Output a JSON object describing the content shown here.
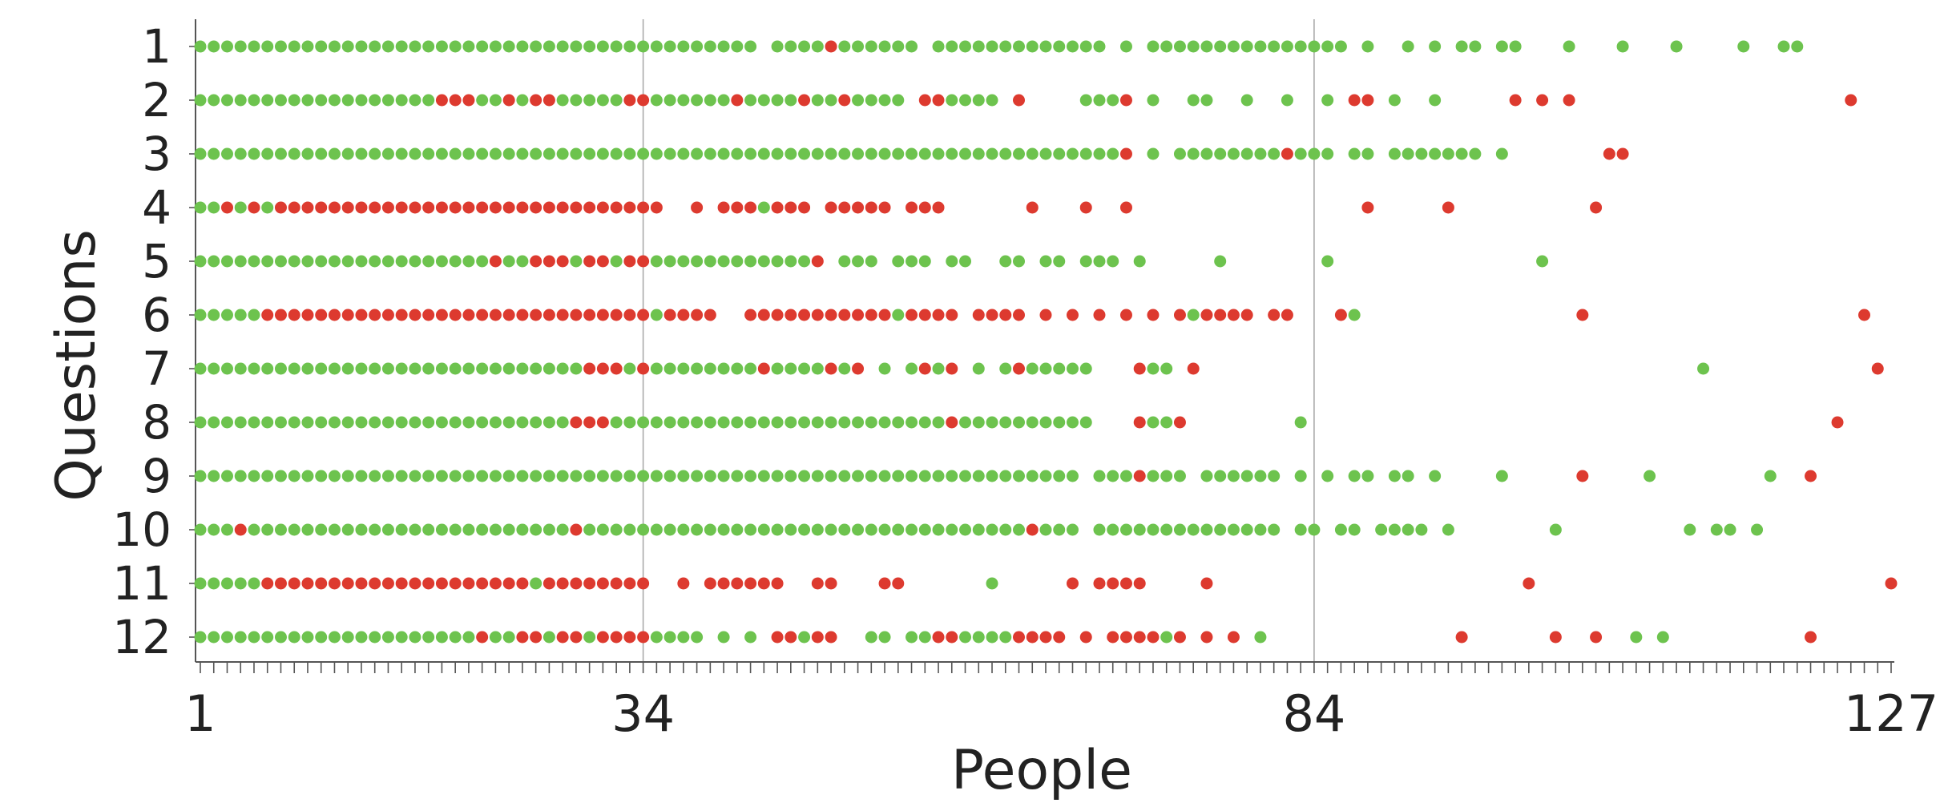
{
  "chart_data": {
    "type": "scatter",
    "title": "",
    "xlabel": "People",
    "ylabel": "Questions",
    "x_ticks": [
      1,
      34,
      84,
      127
    ],
    "x_tick_labels": [
      "1",
      "34",
      "84",
      "127"
    ],
    "y_categories": [
      "1",
      "2",
      "3",
      "4",
      "5",
      "6",
      "7",
      "8",
      "9",
      "10",
      "11",
      "12"
    ],
    "xlim": [
      1,
      127
    ],
    "vertical_gridlines_at": [
      34,
      84
    ],
    "grid": false,
    "legend": "none",
    "colors": {
      "green": "#6dc34e",
      "red": "#dd3a2f",
      "gridline": "#aaaaaa",
      "axis": "#555555"
    },
    "rows": [
      {
        "question": "1",
        "segments": [
          [
            1,
            42,
            "g"
          ],
          [
            44,
            47,
            "g"
          ],
          [
            48,
            48,
            "r"
          ],
          [
            49,
            54,
            "g"
          ],
          [
            56,
            68,
            "g"
          ],
          [
            70,
            70,
            "g"
          ],
          [
            72,
            86,
            "g"
          ],
          [
            88,
            88,
            "g"
          ],
          [
            91,
            91,
            "g"
          ],
          [
            93,
            93,
            "g"
          ],
          [
            95,
            96,
            "g"
          ],
          [
            98,
            99,
            "g"
          ],
          [
            103,
            103,
            "g"
          ],
          [
            107,
            107,
            "g"
          ],
          [
            111,
            111,
            "g"
          ],
          [
            116,
            116,
            "g"
          ],
          [
            119,
            120,
            "g"
          ]
        ]
      },
      {
        "question": "2",
        "segments": [
          [
            1,
            18,
            "g"
          ],
          [
            19,
            21,
            "r"
          ],
          [
            22,
            23,
            "g"
          ],
          [
            24,
            24,
            "r"
          ],
          [
            25,
            25,
            "g"
          ],
          [
            26,
            27,
            "r"
          ],
          [
            28,
            32,
            "g"
          ],
          [
            33,
            34,
            "r"
          ],
          [
            35,
            40,
            "g"
          ],
          [
            41,
            41,
            "r"
          ],
          [
            42,
            45,
            "g"
          ],
          [
            46,
            46,
            "r"
          ],
          [
            47,
            48,
            "g"
          ],
          [
            49,
            49,
            "r"
          ],
          [
            50,
            53,
            "g"
          ],
          [
            55,
            56,
            "r"
          ],
          [
            57,
            60,
            "g"
          ],
          [
            62,
            62,
            "r"
          ],
          [
            67,
            69,
            "g"
          ],
          [
            70,
            70,
            "r"
          ],
          [
            72,
            72,
            "g"
          ],
          [
            75,
            76,
            "g"
          ],
          [
            79,
            79,
            "g"
          ],
          [
            82,
            82,
            "g"
          ],
          [
            85,
            85,
            "g"
          ],
          [
            87,
            88,
            "r"
          ],
          [
            90,
            90,
            "g"
          ],
          [
            93,
            93,
            "g"
          ],
          [
            99,
            99,
            "r"
          ],
          [
            101,
            101,
            "r"
          ],
          [
            103,
            103,
            "r"
          ],
          [
            124,
            124,
            "r"
          ]
        ]
      },
      {
        "question": "3",
        "segments": [
          [
            1,
            69,
            "g"
          ],
          [
            70,
            70,
            "r"
          ],
          [
            72,
            72,
            "g"
          ],
          [
            74,
            81,
            "g"
          ],
          [
            82,
            82,
            "r"
          ],
          [
            83,
            85,
            "g"
          ],
          [
            87,
            88,
            "g"
          ],
          [
            90,
            96,
            "g"
          ],
          [
            98,
            98,
            "g"
          ],
          [
            106,
            107,
            "r"
          ]
        ]
      },
      {
        "question": "4",
        "segments": [
          [
            1,
            2,
            "g"
          ],
          [
            3,
            3,
            "r"
          ],
          [
            4,
            4,
            "g"
          ],
          [
            5,
            5,
            "r"
          ],
          [
            6,
            6,
            "g"
          ],
          [
            7,
            35,
            "r"
          ],
          [
            38,
            38,
            "r"
          ],
          [
            40,
            42,
            "r"
          ],
          [
            43,
            43,
            "g"
          ],
          [
            44,
            46,
            "r"
          ],
          [
            48,
            52,
            "r"
          ],
          [
            54,
            56,
            "r"
          ],
          [
            63,
            63,
            "r"
          ],
          [
            67,
            67,
            "r"
          ],
          [
            70,
            70,
            "r"
          ],
          [
            88,
            88,
            "r"
          ],
          [
            94,
            94,
            "r"
          ],
          [
            105,
            105,
            "r"
          ]
        ]
      },
      {
        "question": "5",
        "segments": [
          [
            1,
            22,
            "g"
          ],
          [
            23,
            23,
            "r"
          ],
          [
            24,
            25,
            "g"
          ],
          [
            26,
            28,
            "r"
          ],
          [
            29,
            29,
            "g"
          ],
          [
            30,
            31,
            "r"
          ],
          [
            32,
            32,
            "g"
          ],
          [
            33,
            34,
            "r"
          ],
          [
            35,
            46,
            "g"
          ],
          [
            47,
            47,
            "r"
          ],
          [
            49,
            51,
            "g"
          ],
          [
            53,
            55,
            "g"
          ],
          [
            57,
            58,
            "g"
          ],
          [
            61,
            62,
            "g"
          ],
          [
            64,
            65,
            "g"
          ],
          [
            67,
            69,
            "g"
          ],
          [
            71,
            71,
            "g"
          ],
          [
            77,
            77,
            "g"
          ],
          [
            85,
            85,
            "g"
          ],
          [
            101,
            101,
            "g"
          ]
        ]
      },
      {
        "question": "6",
        "segments": [
          [
            1,
            5,
            "g"
          ],
          [
            6,
            34,
            "r"
          ],
          [
            35,
            35,
            "g"
          ],
          [
            36,
            39,
            "r"
          ],
          [
            42,
            52,
            "r"
          ],
          [
            53,
            53,
            "g"
          ],
          [
            54,
            57,
            "r"
          ],
          [
            59,
            62,
            "r"
          ],
          [
            64,
            64,
            "r"
          ],
          [
            66,
            66,
            "r"
          ],
          [
            68,
            68,
            "r"
          ],
          [
            70,
            70,
            "r"
          ],
          [
            72,
            72,
            "r"
          ],
          [
            74,
            74,
            "r"
          ],
          [
            75,
            75,
            "g"
          ],
          [
            76,
            79,
            "r"
          ],
          [
            81,
            82,
            "r"
          ],
          [
            86,
            86,
            "r"
          ],
          [
            87,
            87,
            "g"
          ],
          [
            104,
            104,
            "r"
          ],
          [
            125,
            125,
            "r"
          ]
        ]
      },
      {
        "question": "7",
        "segments": [
          [
            1,
            29,
            "g"
          ],
          [
            30,
            32,
            "r"
          ],
          [
            33,
            33,
            "g"
          ],
          [
            34,
            34,
            "r"
          ],
          [
            35,
            42,
            "g"
          ],
          [
            43,
            43,
            "r"
          ],
          [
            44,
            47,
            "g"
          ],
          [
            48,
            48,
            "r"
          ],
          [
            49,
            49,
            "g"
          ],
          [
            50,
            50,
            "r"
          ],
          [
            52,
            52,
            "g"
          ],
          [
            54,
            54,
            "g"
          ],
          [
            55,
            55,
            "r"
          ],
          [
            56,
            56,
            "g"
          ],
          [
            57,
            57,
            "r"
          ],
          [
            59,
            59,
            "g"
          ],
          [
            61,
            61,
            "g"
          ],
          [
            62,
            62,
            "r"
          ],
          [
            63,
            67,
            "g"
          ],
          [
            71,
            71,
            "r"
          ],
          [
            72,
            73,
            "g"
          ],
          [
            75,
            75,
            "r"
          ],
          [
            113,
            113,
            "g"
          ],
          [
            126,
            126,
            "r"
          ]
        ]
      },
      {
        "question": "8",
        "segments": [
          [
            1,
            28,
            "g"
          ],
          [
            29,
            31,
            "r"
          ],
          [
            32,
            56,
            "g"
          ],
          [
            57,
            57,
            "r"
          ],
          [
            58,
            67,
            "g"
          ],
          [
            71,
            71,
            "r"
          ],
          [
            72,
            73,
            "g"
          ],
          [
            74,
            74,
            "r"
          ],
          [
            83,
            83,
            "g"
          ],
          [
            123,
            123,
            "r"
          ]
        ]
      },
      {
        "question": "9",
        "segments": [
          [
            1,
            66,
            "g"
          ],
          [
            68,
            70,
            "g"
          ],
          [
            71,
            71,
            "r"
          ],
          [
            72,
            74,
            "g"
          ],
          [
            76,
            81,
            "g"
          ],
          [
            83,
            83,
            "g"
          ],
          [
            85,
            85,
            "g"
          ],
          [
            87,
            88,
            "g"
          ],
          [
            90,
            91,
            "g"
          ],
          [
            93,
            93,
            "g"
          ],
          [
            98,
            98,
            "g"
          ],
          [
            104,
            104,
            "r"
          ],
          [
            109,
            109,
            "g"
          ],
          [
            118,
            118,
            "g"
          ],
          [
            121,
            121,
            "r"
          ]
        ]
      },
      {
        "question": "10",
        "segments": [
          [
            1,
            3,
            "g"
          ],
          [
            4,
            4,
            "r"
          ],
          [
            5,
            28,
            "g"
          ],
          [
            29,
            29,
            "r"
          ],
          [
            30,
            62,
            "g"
          ],
          [
            63,
            63,
            "r"
          ],
          [
            64,
            66,
            "g"
          ],
          [
            68,
            81,
            "g"
          ],
          [
            83,
            84,
            "g"
          ],
          [
            86,
            87,
            "g"
          ],
          [
            89,
            92,
            "g"
          ],
          [
            94,
            94,
            "g"
          ],
          [
            102,
            102,
            "g"
          ],
          [
            112,
            112,
            "g"
          ],
          [
            114,
            115,
            "g"
          ],
          [
            117,
            117,
            "g"
          ]
        ]
      },
      {
        "question": "11",
        "segments": [
          [
            1,
            5,
            "g"
          ],
          [
            6,
            25,
            "r"
          ],
          [
            26,
            26,
            "g"
          ],
          [
            27,
            34,
            "r"
          ],
          [
            37,
            37,
            "r"
          ],
          [
            39,
            44,
            "r"
          ],
          [
            47,
            48,
            "r"
          ],
          [
            52,
            53,
            "r"
          ],
          [
            60,
            60,
            "g"
          ],
          [
            66,
            66,
            "r"
          ],
          [
            68,
            71,
            "r"
          ],
          [
            76,
            76,
            "r"
          ],
          [
            100,
            100,
            "r"
          ],
          [
            127,
            127,
            "r"
          ]
        ]
      },
      {
        "question": "12",
        "segments": [
          [
            1,
            21,
            "g"
          ],
          [
            22,
            22,
            "r"
          ],
          [
            23,
            24,
            "g"
          ],
          [
            25,
            26,
            "r"
          ],
          [
            27,
            27,
            "g"
          ],
          [
            28,
            29,
            "r"
          ],
          [
            30,
            30,
            "g"
          ],
          [
            31,
            34,
            "r"
          ],
          [
            35,
            38,
            "g"
          ],
          [
            40,
            40,
            "g"
          ],
          [
            42,
            42,
            "g"
          ],
          [
            44,
            45,
            "r"
          ],
          [
            46,
            46,
            "g"
          ],
          [
            47,
            48,
            "r"
          ],
          [
            51,
            52,
            "g"
          ],
          [
            54,
            55,
            "g"
          ],
          [
            56,
            57,
            "r"
          ],
          [
            58,
            61,
            "g"
          ],
          [
            62,
            65,
            "r"
          ],
          [
            67,
            67,
            "r"
          ],
          [
            69,
            72,
            "r"
          ],
          [
            73,
            73,
            "g"
          ],
          [
            74,
            74,
            "r"
          ],
          [
            76,
            76,
            "r"
          ],
          [
            78,
            78,
            "r"
          ],
          [
            80,
            80,
            "g"
          ],
          [
            95,
            95,
            "r"
          ],
          [
            102,
            102,
            "r"
          ],
          [
            105,
            105,
            "r"
          ],
          [
            108,
            108,
            "g"
          ],
          [
            110,
            110,
            "g"
          ],
          [
            121,
            121,
            "r"
          ]
        ]
      }
    ]
  }
}
